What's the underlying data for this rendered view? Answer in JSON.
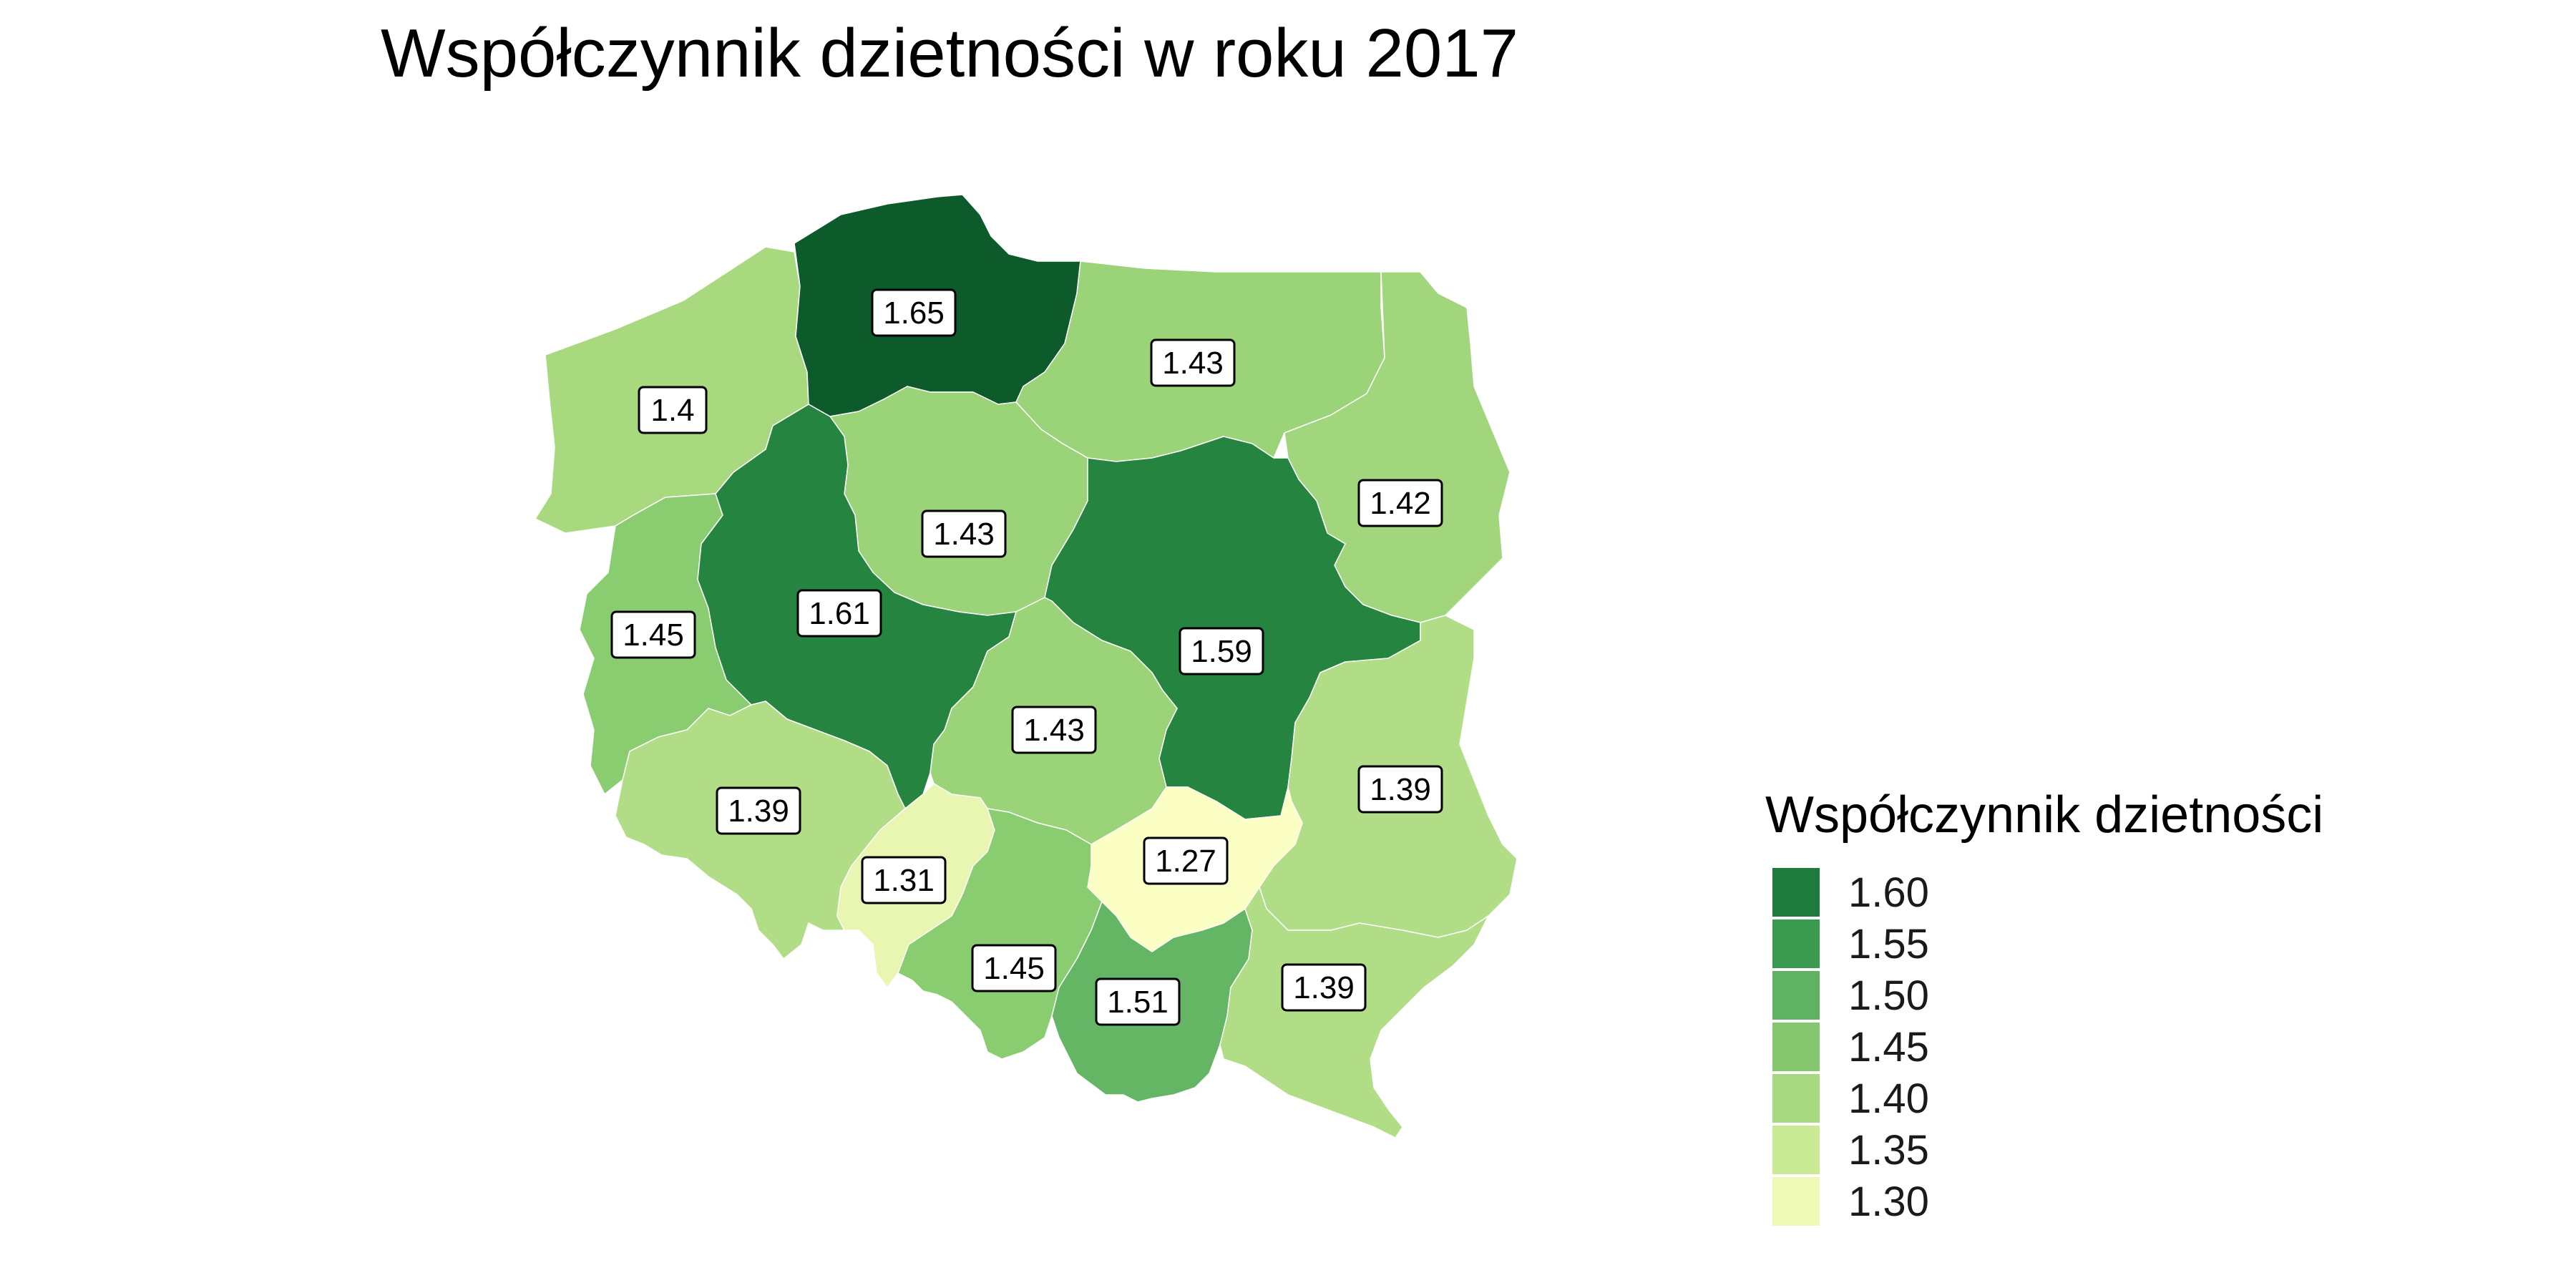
{
  "title": "Współczynnik dzietności w roku 2017",
  "legend": {
    "title": "Współczynnik dzietności",
    "entries": [
      {
        "label": "1.60",
        "color": "#1e7b3b"
      },
      {
        "label": "1.55",
        "color": "#3a9b50"
      },
      {
        "label": "1.50",
        "color": "#5fb262"
      },
      {
        "label": "1.45",
        "color": "#85c76e"
      },
      {
        "label": "1.40",
        "color": "#a8d980"
      },
      {
        "label": "1.35",
        "color": "#cbea96"
      },
      {
        "label": "1.30",
        "color": "#eef9b6"
      }
    ]
  },
  "regions": [
    {
      "id": "pomorskie",
      "value": 1.65,
      "label": "1.65",
      "color": "#0d5a2b"
    },
    {
      "id": "zachodniopomorskie",
      "value": 1.4,
      "label": "1.4",
      "color": "#a9d97f"
    },
    {
      "id": "warminsko-mazurskie",
      "value": 1.43,
      "label": "1.43",
      "color": "#9bd379"
    },
    {
      "id": "podlaskie",
      "value": 1.42,
      "label": "1.42",
      "color": "#a1d67c"
    },
    {
      "id": "kujawsko-pomorskie",
      "value": 1.43,
      "label": "1.43",
      "color": "#9bd379"
    },
    {
      "id": "lubuskie",
      "value": 1.45,
      "label": "1.45",
      "color": "#8acc70"
    },
    {
      "id": "wielkopolskie",
      "value": 1.61,
      "label": "1.61",
      "color": "#25843f"
    },
    {
      "id": "mazowieckie",
      "value": 1.59,
      "label": "1.59",
      "color": "#25843f"
    },
    {
      "id": "lodzkie",
      "value": 1.43,
      "label": "1.43",
      "color": "#9bd379"
    },
    {
      "id": "lubelskie",
      "value": 1.39,
      "label": "1.39",
      "color": "#b1dd86"
    },
    {
      "id": "dolnoslaskie",
      "value": 1.39,
      "label": "1.39",
      "color": "#b1dd86"
    },
    {
      "id": "opolskie",
      "value": 1.31,
      "label": "1.31",
      "color": "#e8f6b1"
    },
    {
      "id": "swietokrzyskie",
      "value": 1.27,
      "label": "1.27",
      "color": "#fbffc4"
    },
    {
      "id": "slaskie",
      "value": 1.45,
      "label": "1.45",
      "color": "#8acc70"
    },
    {
      "id": "malopolskie",
      "value": 1.51,
      "label": "1.51",
      "color": "#64b564"
    },
    {
      "id": "podkarpackie",
      "value": 1.39,
      "label": "1.39",
      "color": "#b1dd86"
    }
  ]
}
